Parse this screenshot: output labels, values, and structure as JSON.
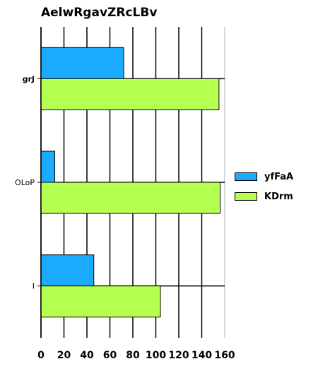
{
  "chart_data": {
    "type": "bar",
    "orientation": "horizontal",
    "title": "AelwRgavZRcLBv",
    "xlabel": "",
    "ylabel": "",
    "categories": [
      "grJ",
      "OLoP",
      "I"
    ],
    "series": [
      {
        "name": "yfFaA",
        "color": "#1aabff",
        "values": [
          72,
          12,
          46
        ]
      },
      {
        "name": "KDrm",
        "color": "#b4ff50",
        "values": [
          155,
          156,
          104
        ]
      }
    ],
    "xlim": [
      0,
      160
    ],
    "xticks": [
      "0",
      "20",
      "40",
      "60",
      "80",
      "100",
      "120",
      "140",
      "160"
    ],
    "grid": true,
    "legend": "right"
  }
}
